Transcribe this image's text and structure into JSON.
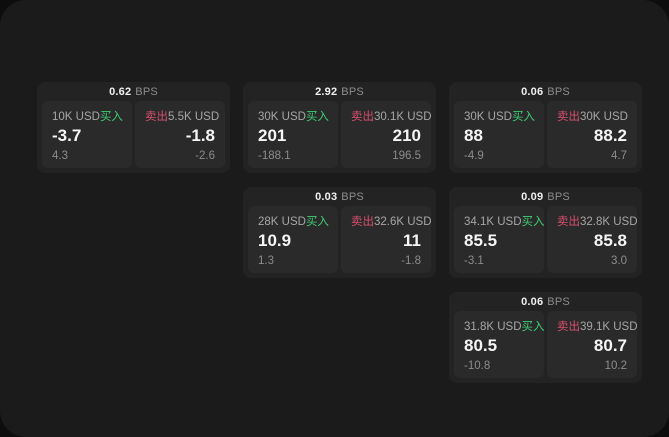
{
  "labels": {
    "buy": "买入",
    "sell": "卖出",
    "bps_unit": "BPS"
  },
  "colors": {
    "surface": "#1b1b1b",
    "card": "#232323",
    "panel": "#2a2a2a",
    "buy_green": "#3ecf73",
    "sell_red": "#d94f6e"
  },
  "cards": [
    {
      "col": 0,
      "row": 0,
      "bps": "0.62",
      "buy": {
        "size": "10K USD",
        "value": "-3.7",
        "sub": "4.3"
      },
      "sell": {
        "size": "5.5K USD",
        "value": "-1.8",
        "sub": "-2.6"
      }
    },
    {
      "col": 1,
      "row": 0,
      "bps": "2.92",
      "buy": {
        "size": "30K USD",
        "value": "201",
        "sub": "-188.1"
      },
      "sell": {
        "size": "30.1K USD",
        "value": "210",
        "sub": "196.5"
      }
    },
    {
      "col": 2,
      "row": 0,
      "bps": "0.06",
      "buy": {
        "size": "30K USD",
        "value": "88",
        "sub": "-4.9"
      },
      "sell": {
        "size": "30K USD",
        "value": "88.2",
        "sub": "4.7"
      }
    },
    {
      "col": 1,
      "row": 1,
      "bps": "0.03",
      "buy": {
        "size": "28K USD",
        "value": "10.9",
        "sub": "1.3"
      },
      "sell": {
        "size": "32.6K USD",
        "value": "11",
        "sub": "-1.8"
      }
    },
    {
      "col": 2,
      "row": 1,
      "bps": "0.09",
      "buy": {
        "size": "34.1K USD",
        "value": "85.5",
        "sub": "-3.1"
      },
      "sell": {
        "size": "32.8K USD",
        "value": "85.8",
        "sub": "3.0"
      }
    },
    {
      "col": 2,
      "row": 2,
      "bps": "0.06",
      "buy": {
        "size": "31.8K USD",
        "value": "80.5",
        "sub": "-10.8"
      },
      "sell": {
        "size": "39.1K USD",
        "value": "80.7",
        "sub": "10.2"
      }
    }
  ]
}
